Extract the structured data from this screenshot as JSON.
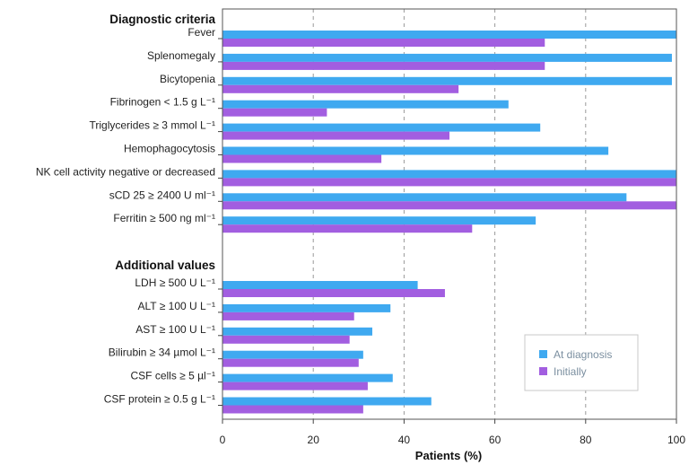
{
  "chart_data": {
    "type": "bar",
    "orientation": "horizontal",
    "xlabel": "Patients (%)",
    "xlim": [
      0,
      100
    ],
    "xticks": [
      "0",
      "20",
      "40",
      "60",
      "80",
      "100"
    ],
    "grid": "vertical dashed",
    "legend_position": "bottom-right",
    "sections": [
      {
        "title": "Diagnostic criteria",
        "categories": [
          "Fever",
          "Splenomegaly",
          "Bicytopenia",
          "Fibrinogen < 1.5 g L⁻¹",
          "Triglycerides ≥ 3 mmol L⁻¹",
          "Hemophagocytosis",
          "NK cell activity negative or decreased",
          "sCD 25 ≥ 2400 U ml⁻¹",
          "Ferritin ≥ 500 ng ml⁻¹"
        ],
        "at_diagnosis": [
          100,
          99,
          99,
          63,
          70,
          85,
          100,
          89,
          69
        ],
        "initially": [
          71,
          71,
          52,
          23,
          50,
          35,
          100,
          100,
          55
        ]
      },
      {
        "title": "Additional values",
        "categories": [
          "LDH ≥ 500 U L⁻¹",
          "ALT ≥ 100 U L⁻¹",
          "AST ≥ 100 U L⁻¹",
          "Bilirubin ≥ 34 µmol L⁻¹",
          "CSF cells ≥ 5 µl⁻¹",
          "CSF protein ≥ 0.5 g L⁻¹"
        ],
        "at_diagnosis": [
          43,
          37,
          33,
          31,
          37.5,
          46
        ],
        "initially": [
          49,
          29,
          28,
          30,
          32,
          31
        ]
      }
    ],
    "series": [
      {
        "name": "At diagnosis",
        "color": "#3fa9f0"
      },
      {
        "name": "Initially",
        "color": "#a25ee0"
      }
    ]
  }
}
